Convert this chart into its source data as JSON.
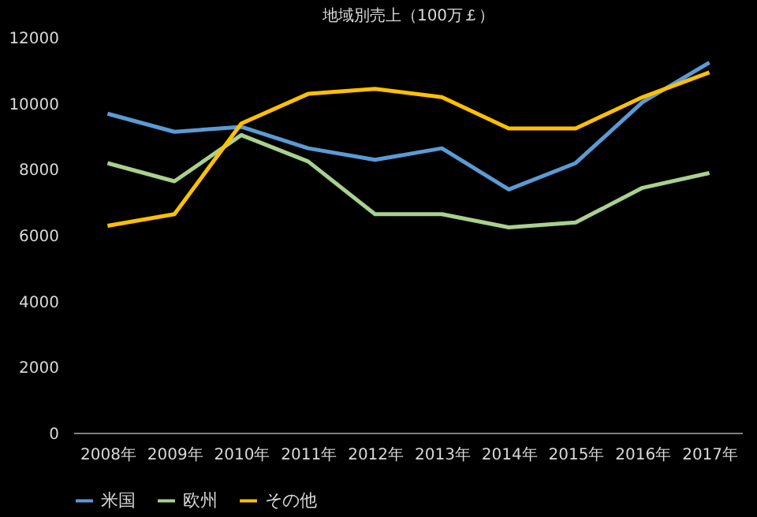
{
  "chart_data": {
    "type": "line",
    "title": "地域別売上（100万￡）",
    "categories": [
      "2008年",
      "2009年",
      "2010年",
      "2011年",
      "2012年",
      "2013年",
      "2014年",
      "2015年",
      "2016年",
      "2017年"
    ],
    "series": [
      {
        "name": "米国",
        "color": "#5b9bd5",
        "values": [
          9700,
          9150,
          9300,
          8650,
          8300,
          8650,
          7400,
          8200,
          10050,
          11250
        ]
      },
      {
        "name": "欧州",
        "color": "#a9d18e",
        "values": [
          8200,
          7650,
          9050,
          8250,
          6650,
          6650,
          6250,
          6400,
          7450,
          7900
        ]
      },
      {
        "name": "その他",
        "color": "#ffc000",
        "values": [
          6300,
          6650,
          9400,
          10300,
          10450,
          10200,
          9250,
          9250,
          10200,
          10950
        ]
      }
    ],
    "ylim": [
      0,
      12000
    ],
    "yticks": [
      0,
      2000,
      4000,
      6000,
      8000,
      10000,
      12000
    ],
    "grid": false,
    "legend": "bottom"
  }
}
